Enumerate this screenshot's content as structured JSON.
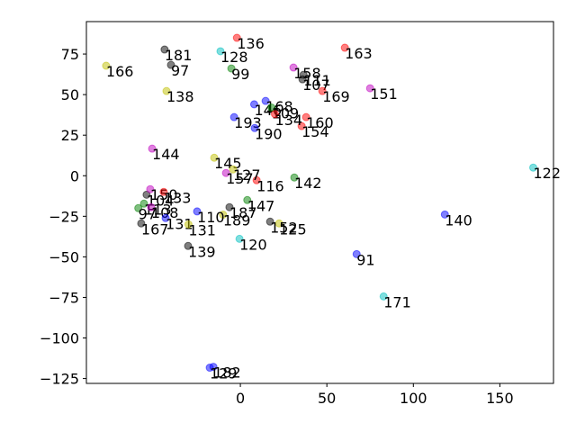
{
  "chart_data": {
    "type": "scatter",
    "xlim": [
      -89,
      181
    ],
    "ylim": [
      -128,
      95
    ],
    "xticks": [
      0,
      50,
      100,
      150
    ],
    "yticks": [
      {
        "value": -125,
        "label": "−125"
      },
      {
        "value": -100,
        "label": "−100"
      },
      {
        "value": -75,
        "label": "−75"
      },
      {
        "value": -50,
        "label": "−50"
      },
      {
        "value": -25,
        "label": "−25"
      },
      0,
      25,
      50,
      75
    ],
    "labels": [
      "136",
      "128",
      "163",
      "166",
      "181",
      "97",
      "138",
      "99",
      "158",
      "111",
      "107",
      "169",
      "151",
      "146",
      "168",
      "109",
      "144",
      "145",
      "122",
      "140",
      "91",
      "171",
      "182",
      "129",
      "125",
      "152",
      "120",
      "139",
      "167",
      "97",
      "104",
      "150",
      "133",
      "113",
      "108",
      "131",
      "160",
      "154",
      "142",
      "116",
      "127",
      "193",
      "190",
      "157",
      "187",
      "189",
      "147",
      "131",
      "110",
      "134"
    ],
    "x": [
      -2,
      -11.5,
      60.4,
      -77.6,
      -43.8,
      -40.1,
      -42.7,
      -5.2,
      30.7,
      36.5,
      35.9,
      47.4,
      75,
      8,
      14.6,
      18,
      -51,
      -15.1,
      169.3,
      118.2,
      67.2,
      82.8,
      -15.6,
      -17.7,
      22.4,
      17.2,
      -0.5,
      -30.2,
      -57.3,
      -59,
      -54.2,
      -52.1,
      -44.3,
      -55.7,
      -51.6,
      -43.2,
      38,
      35.4,
      31.2,
      9.4,
      -4.2,
      -3.6,
      8.3,
      -8.3,
      -6.3,
      -10,
      4,
      -30,
      -25,
      20
    ],
    "y": [
      85,
      76.7,
      78.9,
      67.8,
      77.8,
      68.3,
      52.2,
      66.1,
      66.7,
      62.2,
      59.4,
      52.2,
      53.9,
      44,
      46.1,
      42,
      16.7,
      11.1,
      5,
      -23.9,
      -48.3,
      -74.4,
      -117.8,
      -118.3,
      -29.4,
      -28.3,
      -38.9,
      -43.3,
      -29.4,
      -20,
      -11.7,
      -8.3,
      -10,
      -17.2,
      -19.4,
      -26.1,
      36.1,
      30.6,
      -1.1,
      -2.8,
      3.9,
      36.1,
      29.4,
      1.7,
      -19.4,
      -24,
      -15,
      -30,
      -22,
      38
    ],
    "colors": [
      "#ff0000",
      "#00bfbf",
      "#ff0000",
      "#bfbf00",
      "#000000",
      "#000000",
      "#bfbf00",
      "#008000",
      "#bf00bf",
      "#000000",
      "#000000",
      "#ff0000",
      "#bf00bf",
      "#0000ff",
      "#0000ff",
      "#008000",
      "#bf00bf",
      "#bfbf00",
      "#00bfbf",
      "#0000ff",
      "#0000ff",
      "#00bfbf",
      "#0000ff",
      "#0000ff",
      "#bfbf00",
      "#000000",
      "#00bfbf",
      "#000000",
      "#000000",
      "#008000",
      "#000000",
      "#bf00bf",
      "#ff0000",
      "#008000",
      "#bf00bf",
      "#0000ff",
      "#ff0000",
      "#ff0000",
      "#008000",
      "#ff0000",
      "#bfbf00",
      "#0000ff",
      "#0000ff",
      "#bf00bf",
      "#000000",
      "#bfbf00",
      "#008000",
      "#bfbf00",
      "#0000ff",
      "#ff0000"
    ]
  }
}
